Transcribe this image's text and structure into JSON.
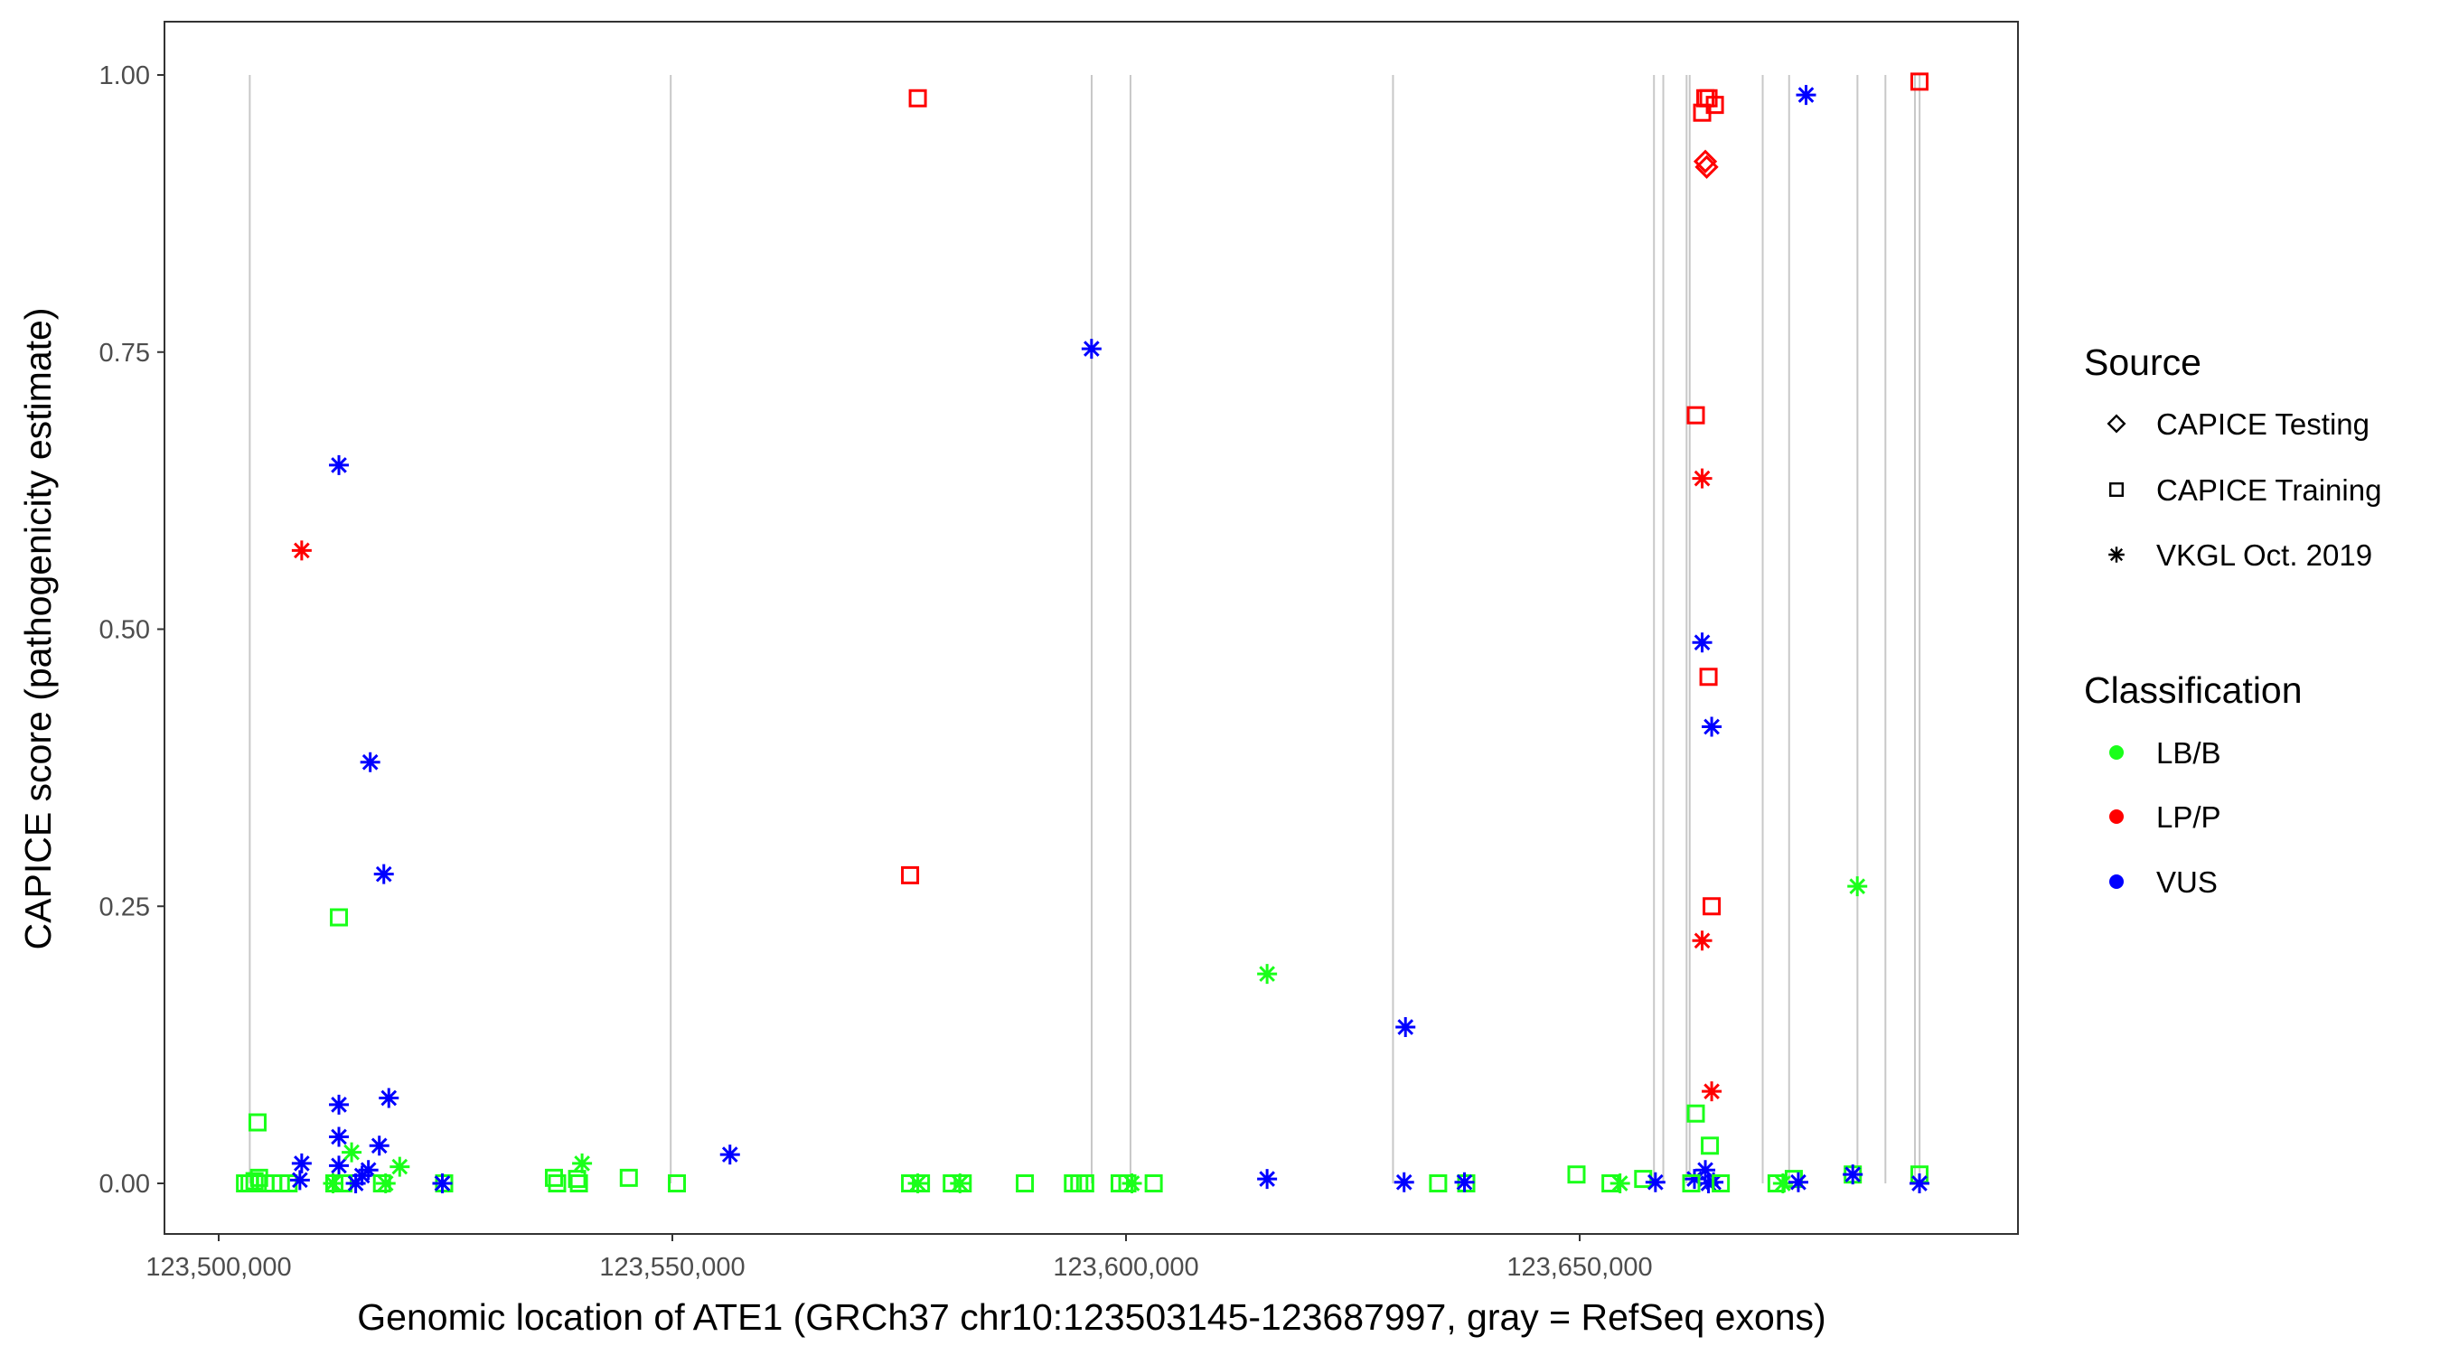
{
  "chart_data": {
    "type": "scatter",
    "xlabel": "Genomic location of ATE1 (GRCh37 chr10:123503145-123687997, gray = RefSeq exons)",
    "ylabel": "CAPICE score (pathogenicity estimate)",
    "xlim": [
      123492000,
      123690500
    ],
    "ylim": [
      -0.045,
      1.05
    ],
    "x_ticks": [
      123500000,
      123550000,
      123600000,
      123650000
    ],
    "x_tick_labels": [
      "123,500,000",
      "123,550,000",
      "123,600,000",
      "123,650,000"
    ],
    "y_ticks": [
      0,
      0.25,
      0.5,
      0.75,
      1.0
    ],
    "y_tick_labels": [
      "0.00",
      "0.25",
      "0.50",
      "0.75",
      "1.00"
    ],
    "grid": false,
    "exons": [
      123503424,
      123549820,
      123596214,
      123600494,
      123629427,
      123658189,
      123659216,
      123661784,
      123662126,
      123670173,
      123673083,
      123680616,
      123683698,
      123686950,
      123687464
    ],
    "legend": {
      "placement": "right",
      "source_title": "Source",
      "sources": [
        {
          "key": "testing",
          "label": "CAPICE Testing",
          "shape": "diamond"
        },
        {
          "key": "training",
          "label": "CAPICE Training",
          "shape": "square"
        },
        {
          "key": "vkgl",
          "label": "VKGL Oct. 2019",
          "shape": "asterisk"
        }
      ],
      "class_title": "Classification",
      "classes": [
        {
          "key": "LB/B",
          "label": "LB/B",
          "color": "#1aff1a"
        },
        {
          "key": "LP/P",
          "label": "LP/P",
          "color": "#ff0000"
        },
        {
          "key": "VUS",
          "label": "VUS",
          "color": "#0000ff"
        }
      ]
    },
    "points_columns": [
      "position",
      "score",
      "source",
      "classification"
    ],
    "points": [
      [
        123504280,
        0.055,
        "training",
        "LB/B"
      ],
      [
        123502900,
        0.0,
        "training",
        "LB/B"
      ],
      [
        123503400,
        0.0,
        "training",
        "LB/B"
      ],
      [
        123503950,
        0.002,
        "training",
        "LB/B"
      ],
      [
        123504450,
        0.005,
        "training",
        "LB/B"
      ],
      [
        123505150,
        0.0,
        "training",
        "LB/B"
      ],
      [
        123506000,
        0.0,
        "training",
        "LB/B"
      ],
      [
        123506850,
        0.0,
        "training",
        "LB/B"
      ],
      [
        123507700,
        0.0,
        "training",
        "LB/B"
      ],
      [
        123509150,
        0.018,
        "vkgl",
        "VUS"
      ],
      [
        123508950,
        0.003,
        "vkgl",
        "VUS"
      ],
      [
        123509150,
        0.571,
        "vkgl",
        "LP/P"
      ],
      [
        123513250,
        0.648,
        "vkgl",
        "VUS"
      ],
      [
        123513250,
        0.24,
        "training",
        "LB/B"
      ],
      [
        123513250,
        0.071,
        "vkgl",
        "VUS"
      ],
      [
        123513250,
        0.042,
        "vkgl",
        "VUS"
      ],
      [
        123513250,
        0.016,
        "vkgl",
        "VUS"
      ],
      [
        123516700,
        0.38,
        "vkgl",
        "VUS"
      ],
      [
        123518200,
        0.279,
        "vkgl",
        "VUS"
      ],
      [
        123518750,
        0.077,
        "vkgl",
        "VUS"
      ],
      [
        123517700,
        0.034,
        "vkgl",
        "VUS"
      ],
      [
        123516500,
        0.012,
        "vkgl",
        "VUS"
      ],
      [
        123515800,
        0.007,
        "vkgl",
        "VUS"
      ],
      [
        123514650,
        0.028,
        "vkgl",
        "LB/B"
      ],
      [
        123519950,
        0.015,
        "vkgl",
        "LB/B"
      ],
      [
        123518400,
        0.0,
        "vkgl",
        "LB/B"
      ],
      [
        123512750,
        0.0,
        "training",
        "LB/B"
      ],
      [
        123513750,
        0.0,
        "training",
        "LB/B"
      ],
      [
        123518000,
        0.0,
        "training",
        "LB/B"
      ],
      [
        123515100,
        0.0,
        "vkgl",
        "VUS"
      ],
      [
        123512600,
        0.0,
        "vkgl",
        "LB/B"
      ],
      [
        123524850,
        0.0,
        "training",
        "LB/B"
      ],
      [
        123524650,
        0.0,
        "vkgl",
        "LB/B"
      ],
      [
        123524650,
        0.0,
        "vkgl",
        "VUS"
      ],
      [
        123536950,
        0.005,
        "training",
        "LB/B"
      ],
      [
        123537300,
        0.0,
        "training",
        "LB/B"
      ],
      [
        123539700,
        0.0,
        "training",
        "LB/B"
      ],
      [
        123539500,
        0.004,
        "training",
        "LB/B"
      ],
      [
        123540050,
        0.018,
        "vkgl",
        "LB/B"
      ],
      [
        123545200,
        0.005,
        "training",
        "LB/B"
      ],
      [
        123550500,
        0.0,
        "training",
        "LB/B"
      ],
      [
        123556350,
        0.026,
        "vkgl",
        "VUS"
      ],
      [
        123577050,
        0.979,
        "training",
        "LP/P"
      ],
      [
        123576200,
        0.278,
        "training",
        "LP/P"
      ],
      [
        123576200,
        0.0,
        "training",
        "LB/B"
      ],
      [
        123577400,
        0.0,
        "training",
        "LB/B"
      ],
      [
        123577050,
        0.0,
        "vkgl",
        "LB/B"
      ],
      [
        123580800,
        0.0,
        "training",
        "LB/B"
      ],
      [
        123581700,
        0.0,
        "vkgl",
        "LB/B"
      ],
      [
        123582000,
        0.0,
        "training",
        "LB/B"
      ],
      [
        123588850,
        0.0,
        "training",
        "LB/B"
      ],
      [
        123594150,
        0.0,
        "training",
        "LB/B"
      ],
      [
        123594850,
        0.0,
        "training",
        "LB/B"
      ],
      [
        123595500,
        0.0,
        "training",
        "LB/B"
      ],
      [
        123596200,
        0.753,
        "vkgl",
        "VUS"
      ],
      [
        123599300,
        0.0,
        "training",
        "LB/B"
      ],
      [
        123600150,
        0.0,
        "training",
        "LB/B"
      ],
      [
        123600650,
        0.0,
        "vkgl",
        "LB/B"
      ],
      [
        123603050,
        0.0,
        "training",
        "LB/B"
      ],
      [
        123615550,
        0.189,
        "vkgl",
        "LB/B"
      ],
      [
        123615550,
        0.004,
        "vkgl",
        "VUS"
      ],
      [
        123630800,
        0.141,
        "vkgl",
        "VUS"
      ],
      [
        123630650,
        0.001,
        "vkgl",
        "VUS"
      ],
      [
        123634400,
        0.0,
        "training",
        "LB/B"
      ],
      [
        123637500,
        0.0,
        "training",
        "LB/B"
      ],
      [
        123637300,
        0.001,
        "vkgl",
        "VUS"
      ],
      [
        123649650,
        0.008,
        "training",
        "LB/B"
      ],
      [
        123653400,
        0.0,
        "training",
        "LB/B"
      ],
      [
        123654450,
        0.0,
        "vkgl",
        "LB/B"
      ],
      [
        123657000,
        0.004,
        "training",
        "LB/B"
      ],
      [
        123658350,
        0.001,
        "vkgl",
        "VUS"
      ],
      [
        123662800,
        0.693,
        "training",
        "LP/P"
      ],
      [
        123663500,
        0.636,
        "vkgl",
        "LP/P"
      ],
      [
        123663850,
        0.979,
        "training",
        "LP/P"
      ],
      [
        123664200,
        0.979,
        "training",
        "LP/P"
      ],
      [
        123663500,
        0.966,
        "training",
        "LP/P"
      ],
      [
        123664900,
        0.973,
        "training",
        "LP/P"
      ],
      [
        123663850,
        0.922,
        "testing",
        "LP/P"
      ],
      [
        123664000,
        0.917,
        "testing",
        "LP/P"
      ],
      [
        123663500,
        0.488,
        "vkgl",
        "VUS"
      ],
      [
        123664200,
        0.457,
        "training",
        "LP/P"
      ],
      [
        123664550,
        0.412,
        "vkgl",
        "VUS"
      ],
      [
        123664550,
        0.25,
        "training",
        "LP/P"
      ],
      [
        123663500,
        0.219,
        "vkgl",
        "LP/P"
      ],
      [
        123664550,
        0.083,
        "vkgl",
        "LP/P"
      ],
      [
        123662800,
        0.063,
        "training",
        "LB/B"
      ],
      [
        123664350,
        0.034,
        "training",
        "LB/B"
      ],
      [
        123663850,
        0.012,
        "vkgl",
        "VUS"
      ],
      [
        123662650,
        0.004,
        "vkgl",
        "VUS"
      ],
      [
        123664200,
        0.0,
        "vkgl",
        "VUS"
      ],
      [
        123664750,
        0.001,
        "vkgl",
        "VUS"
      ],
      [
        123662300,
        0.0,
        "training",
        "LB/B"
      ],
      [
        123665550,
        0.0,
        "training",
        "LB/B"
      ],
      [
        123671700,
        0.0,
        "training",
        "LB/B"
      ],
      [
        123672400,
        0.0,
        "vkgl",
        "LB/B"
      ],
      [
        123673600,
        0.004,
        "training",
        "LB/B"
      ],
      [
        123674100,
        0.001,
        "vkgl",
        "VUS"
      ],
      [
        123674950,
        0.982,
        "vkgl",
        "VUS"
      ],
      [
        123680100,
        0.008,
        "training",
        "LB/B"
      ],
      [
        123680100,
        0.008,
        "vkgl",
        "VUS"
      ],
      [
        123680600,
        0.268,
        "vkgl",
        "LB/B"
      ],
      [
        123687450,
        0.994,
        "training",
        "LP/P"
      ],
      [
        123687450,
        0.008,
        "training",
        "LB/B"
      ],
      [
        123687450,
        0.0,
        "vkgl",
        "VUS"
      ]
    ]
  }
}
